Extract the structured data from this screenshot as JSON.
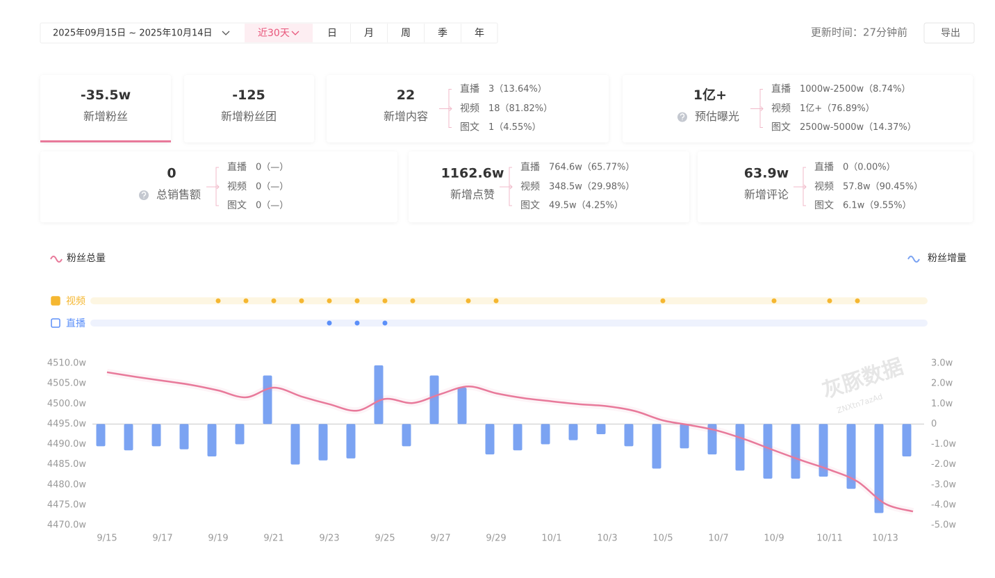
{
  "header": {
    "date_range": "2025年09月15日 ~ 2025年10月14日",
    "quick_range": "近30天",
    "periods": [
      "日",
      "月",
      "周",
      "季",
      "年"
    ],
    "update_time": "更新时间：27分钟前",
    "export": "导出"
  },
  "cards": [
    {
      "value": "-35.5w",
      "label": "新增粉丝",
      "active": true
    },
    {
      "value": "-125",
      "label": "新增粉丝团"
    },
    {
      "value": "22",
      "label": "新增内容",
      "breakdown": [
        {
          "name": "直播",
          "value": "3（13.64%）"
        },
        {
          "name": "视频",
          "value": "18（81.82%）"
        },
        {
          "name": "图文",
          "value": "1（4.55%）"
        }
      ]
    },
    {
      "value": "1亿+",
      "label": "预估曝光",
      "help": true,
      "breakdown": [
        {
          "name": "直播",
          "value": "1000w-2500w（8.74%）"
        },
        {
          "name": "视频",
          "value": "1亿+（76.89%）"
        },
        {
          "name": "图文",
          "value": "2500w-5000w（14.37%）"
        }
      ]
    },
    {
      "value": "0",
      "label": "总销售额",
      "help": true,
      "breakdown": [
        {
          "name": "直播",
          "value": "0（—）"
        },
        {
          "name": "视频",
          "value": "0（—）"
        },
        {
          "name": "图文",
          "value": "0（—）"
        }
      ]
    },
    {
      "value": "1162.6w",
      "label": "新增点赞",
      "breakdown": [
        {
          "name": "直播",
          "value": "764.6w（65.77%）"
        },
        {
          "name": "视频",
          "value": "348.5w（29.98%）"
        },
        {
          "name": "图文",
          "value": "49.5w（4.25%）"
        }
      ]
    },
    {
      "value": "63.9w",
      "label": "新增评论",
      "breakdown": [
        {
          "name": "直播",
          "value": "0（0.00%）"
        },
        {
          "name": "视频",
          "value": "57.8w（90.45%）"
        },
        {
          "name": "图文",
          "value": "6.1w（9.55%）"
        }
      ]
    }
  ],
  "chart_data": {
    "type": "combo",
    "watermark": "灰豚数据",
    "watermark_code": "ZNXtn7azAd",
    "categories": [
      "9/15",
      null,
      "9/17",
      null,
      "9/19",
      null,
      "9/21",
      null,
      "9/23",
      null,
      "9/25",
      null,
      "9/27",
      null,
      "9/29",
      null,
      "10/1",
      null,
      "10/3",
      null,
      "10/5",
      null,
      "10/7",
      null,
      "10/9",
      null,
      "10/11",
      null,
      "10/13",
      null
    ],
    "series": [
      {
        "name": "粉丝总量",
        "type": "line",
        "color": "#e8799a",
        "values": [
          4507.8,
          4506.7,
          4505.7,
          4504.7,
          4503.3,
          4501.6,
          4504.0,
          4501.8,
          4499.9,
          4498.3,
          4501.2,
          4500.2,
          4502.4,
          4504.3,
          4502.6,
          4501.4,
          4500.6,
          4499.9,
          4499.4,
          4498.2,
          4495.9,
          4494.7,
          4493.3,
          4491.1,
          4488.5,
          4486.0,
          4483.7,
          4480.8,
          4475.3,
          4473.4
        ]
      },
      {
        "name": "粉丝增量",
        "type": "bar",
        "axis": "y2",
        "color": "#7ba3f2",
        "values": [
          -1.1,
          -1.3,
          -1.1,
          -1.25,
          -1.6,
          -1.0,
          2.4,
          -2.0,
          -1.8,
          -1.7,
          2.9,
          -1.1,
          2.4,
          1.8,
          -1.5,
          -1.3,
          -1.0,
          -0.8,
          -0.5,
          -1.1,
          -2.2,
          -1.2,
          -1.5,
          -2.3,
          -2.7,
          -2.7,
          -2.6,
          -3.2,
          -4.4,
          -1.6
        ]
      }
    ],
    "events": [
      {
        "name": "视频",
        "color": "#f5b731",
        "values": [
          null,
          null,
          null,
          null,
          1,
          1,
          1,
          1,
          1,
          1,
          1,
          1,
          null,
          1,
          1,
          null,
          null,
          null,
          null,
          null,
          1,
          null,
          null,
          null,
          1,
          null,
          1,
          1,
          null,
          null
        ]
      },
      {
        "name": "直播",
        "color": "#5b8ff9",
        "values": [
          null,
          null,
          null,
          null,
          null,
          null,
          null,
          null,
          1,
          1,
          1,
          null,
          null,
          null,
          null,
          null,
          null,
          null,
          null,
          null,
          null,
          null,
          null,
          null,
          null,
          null,
          null,
          null,
          null,
          null
        ]
      }
    ],
    "ylim": [
      4470,
      4510
    ],
    "yticks": [
      {
        "value": 4510,
        "label": "4510.0w"
      },
      {
        "value": 4505,
        "label": "4505.0w"
      },
      {
        "value": 4500,
        "label": "4500.0w"
      },
      {
        "value": 4495,
        "label": "4495.0w"
      },
      {
        "value": 4490,
        "label": "4490.0w"
      },
      {
        "value": 4485,
        "label": "4485.0w"
      },
      {
        "value": 4480,
        "label": "4480.0w"
      },
      {
        "value": 4475,
        "label": "4475.0w"
      },
      {
        "value": 4470,
        "label": "4470.0w"
      }
    ],
    "y2lim": [
      -5,
      3
    ],
    "y2ticks": [
      {
        "value": 3,
        "label": "3.0w"
      },
      {
        "value": 2,
        "label": "2.0w"
      },
      {
        "value": 1,
        "label": "1.0w"
      },
      0,
      {
        "value": -1,
        "label": "-1.0w"
      },
      {
        "value": -2,
        "label": "-2.0w"
      },
      {
        "value": -3,
        "label": "-3.0w"
      },
      {
        "value": -4,
        "label": "-4.0w"
      },
      {
        "value": -5,
        "label": "-5.0w"
      }
    ],
    "grid": false
  }
}
